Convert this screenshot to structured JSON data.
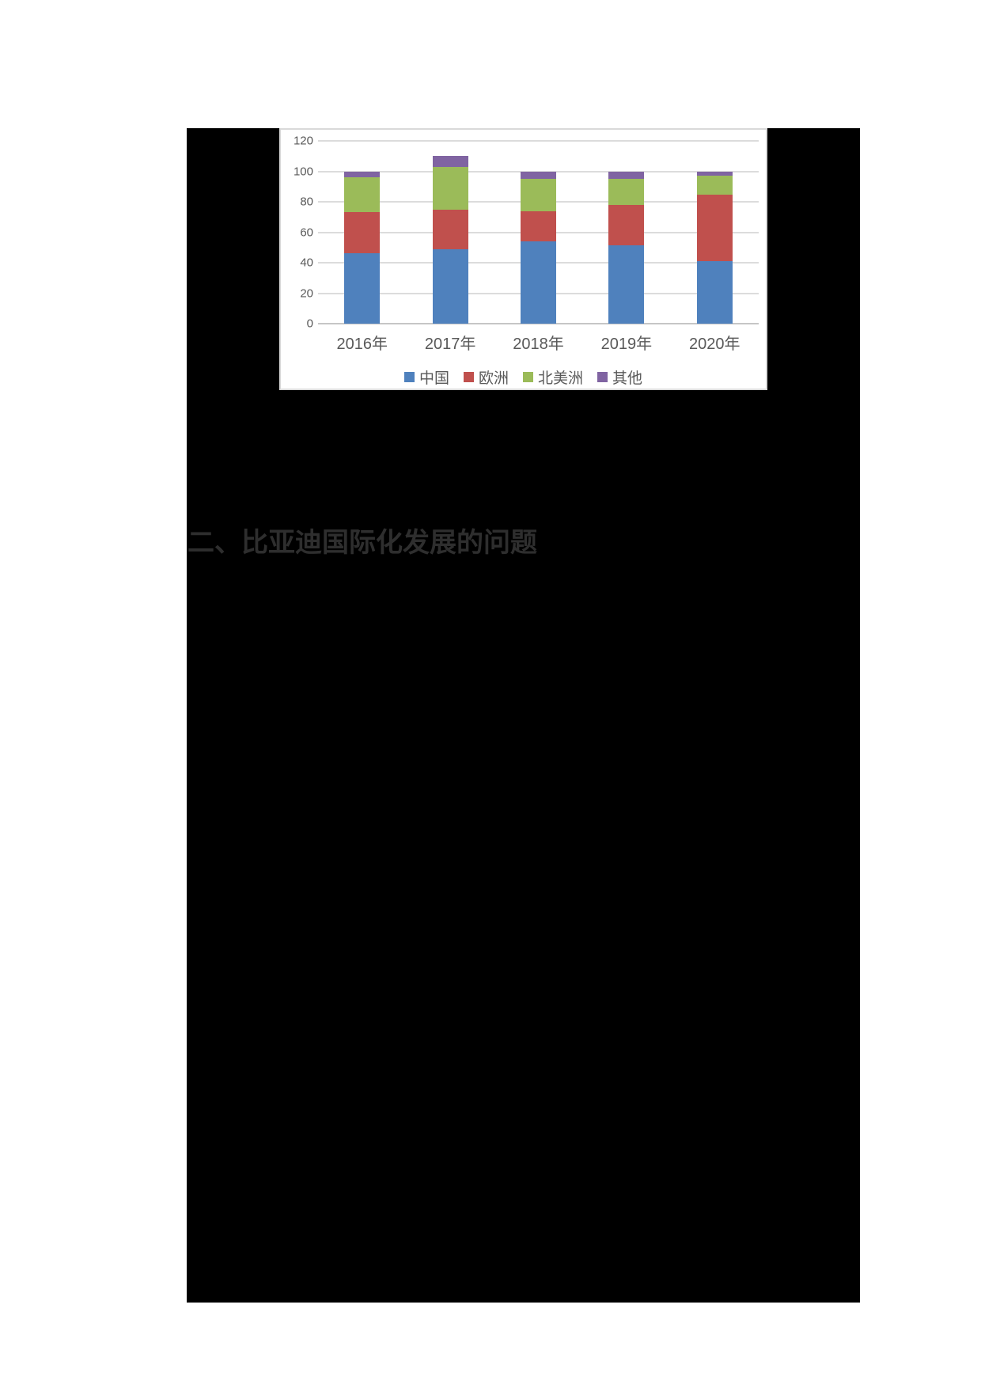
{
  "page": {
    "section_heading": "二、比亚迪国际化发展的问题"
  },
  "colors": {
    "page_bg": "#ffffff",
    "panel_bg": "#000000",
    "chart_bg": "#ffffff",
    "chart_border": "#d9d9d9",
    "gridline": "#dcdcdc",
    "axis_line": "#c6c6c6",
    "axis_text": "#595959",
    "heading_text": "#2e2e2e"
  },
  "chart_data": {
    "type": "bar",
    "stacked": true,
    "title": "",
    "categories": [
      "2016年",
      "2017年",
      "2018年",
      "2019年",
      "2020年"
    ],
    "series": [
      {
        "key": "china",
        "name": "中国",
        "color": "#4F81BD",
        "values": [
          46,
          49,
          54,
          51.5,
          41
        ]
      },
      {
        "key": "europe",
        "name": "欧洲",
        "color": "#C0504D",
        "values": [
          27,
          26,
          20,
          26.5,
          43.5
        ]
      },
      {
        "key": "north-america",
        "name": "北美洲",
        "color": "#9BBB59",
        "values": [
          23,
          28,
          21,
          17,
          12.5
        ]
      },
      {
        "key": "other",
        "name": "其他",
        "color": "#8064A2",
        "values": [
          4,
          7,
          5,
          5,
          3
        ]
      }
    ],
    "ylim": [
      0,
      120
    ],
    "yticks": [
      0,
      20,
      40,
      60,
      80,
      100,
      120
    ],
    "grid": true,
    "legend_position": "bottom"
  }
}
